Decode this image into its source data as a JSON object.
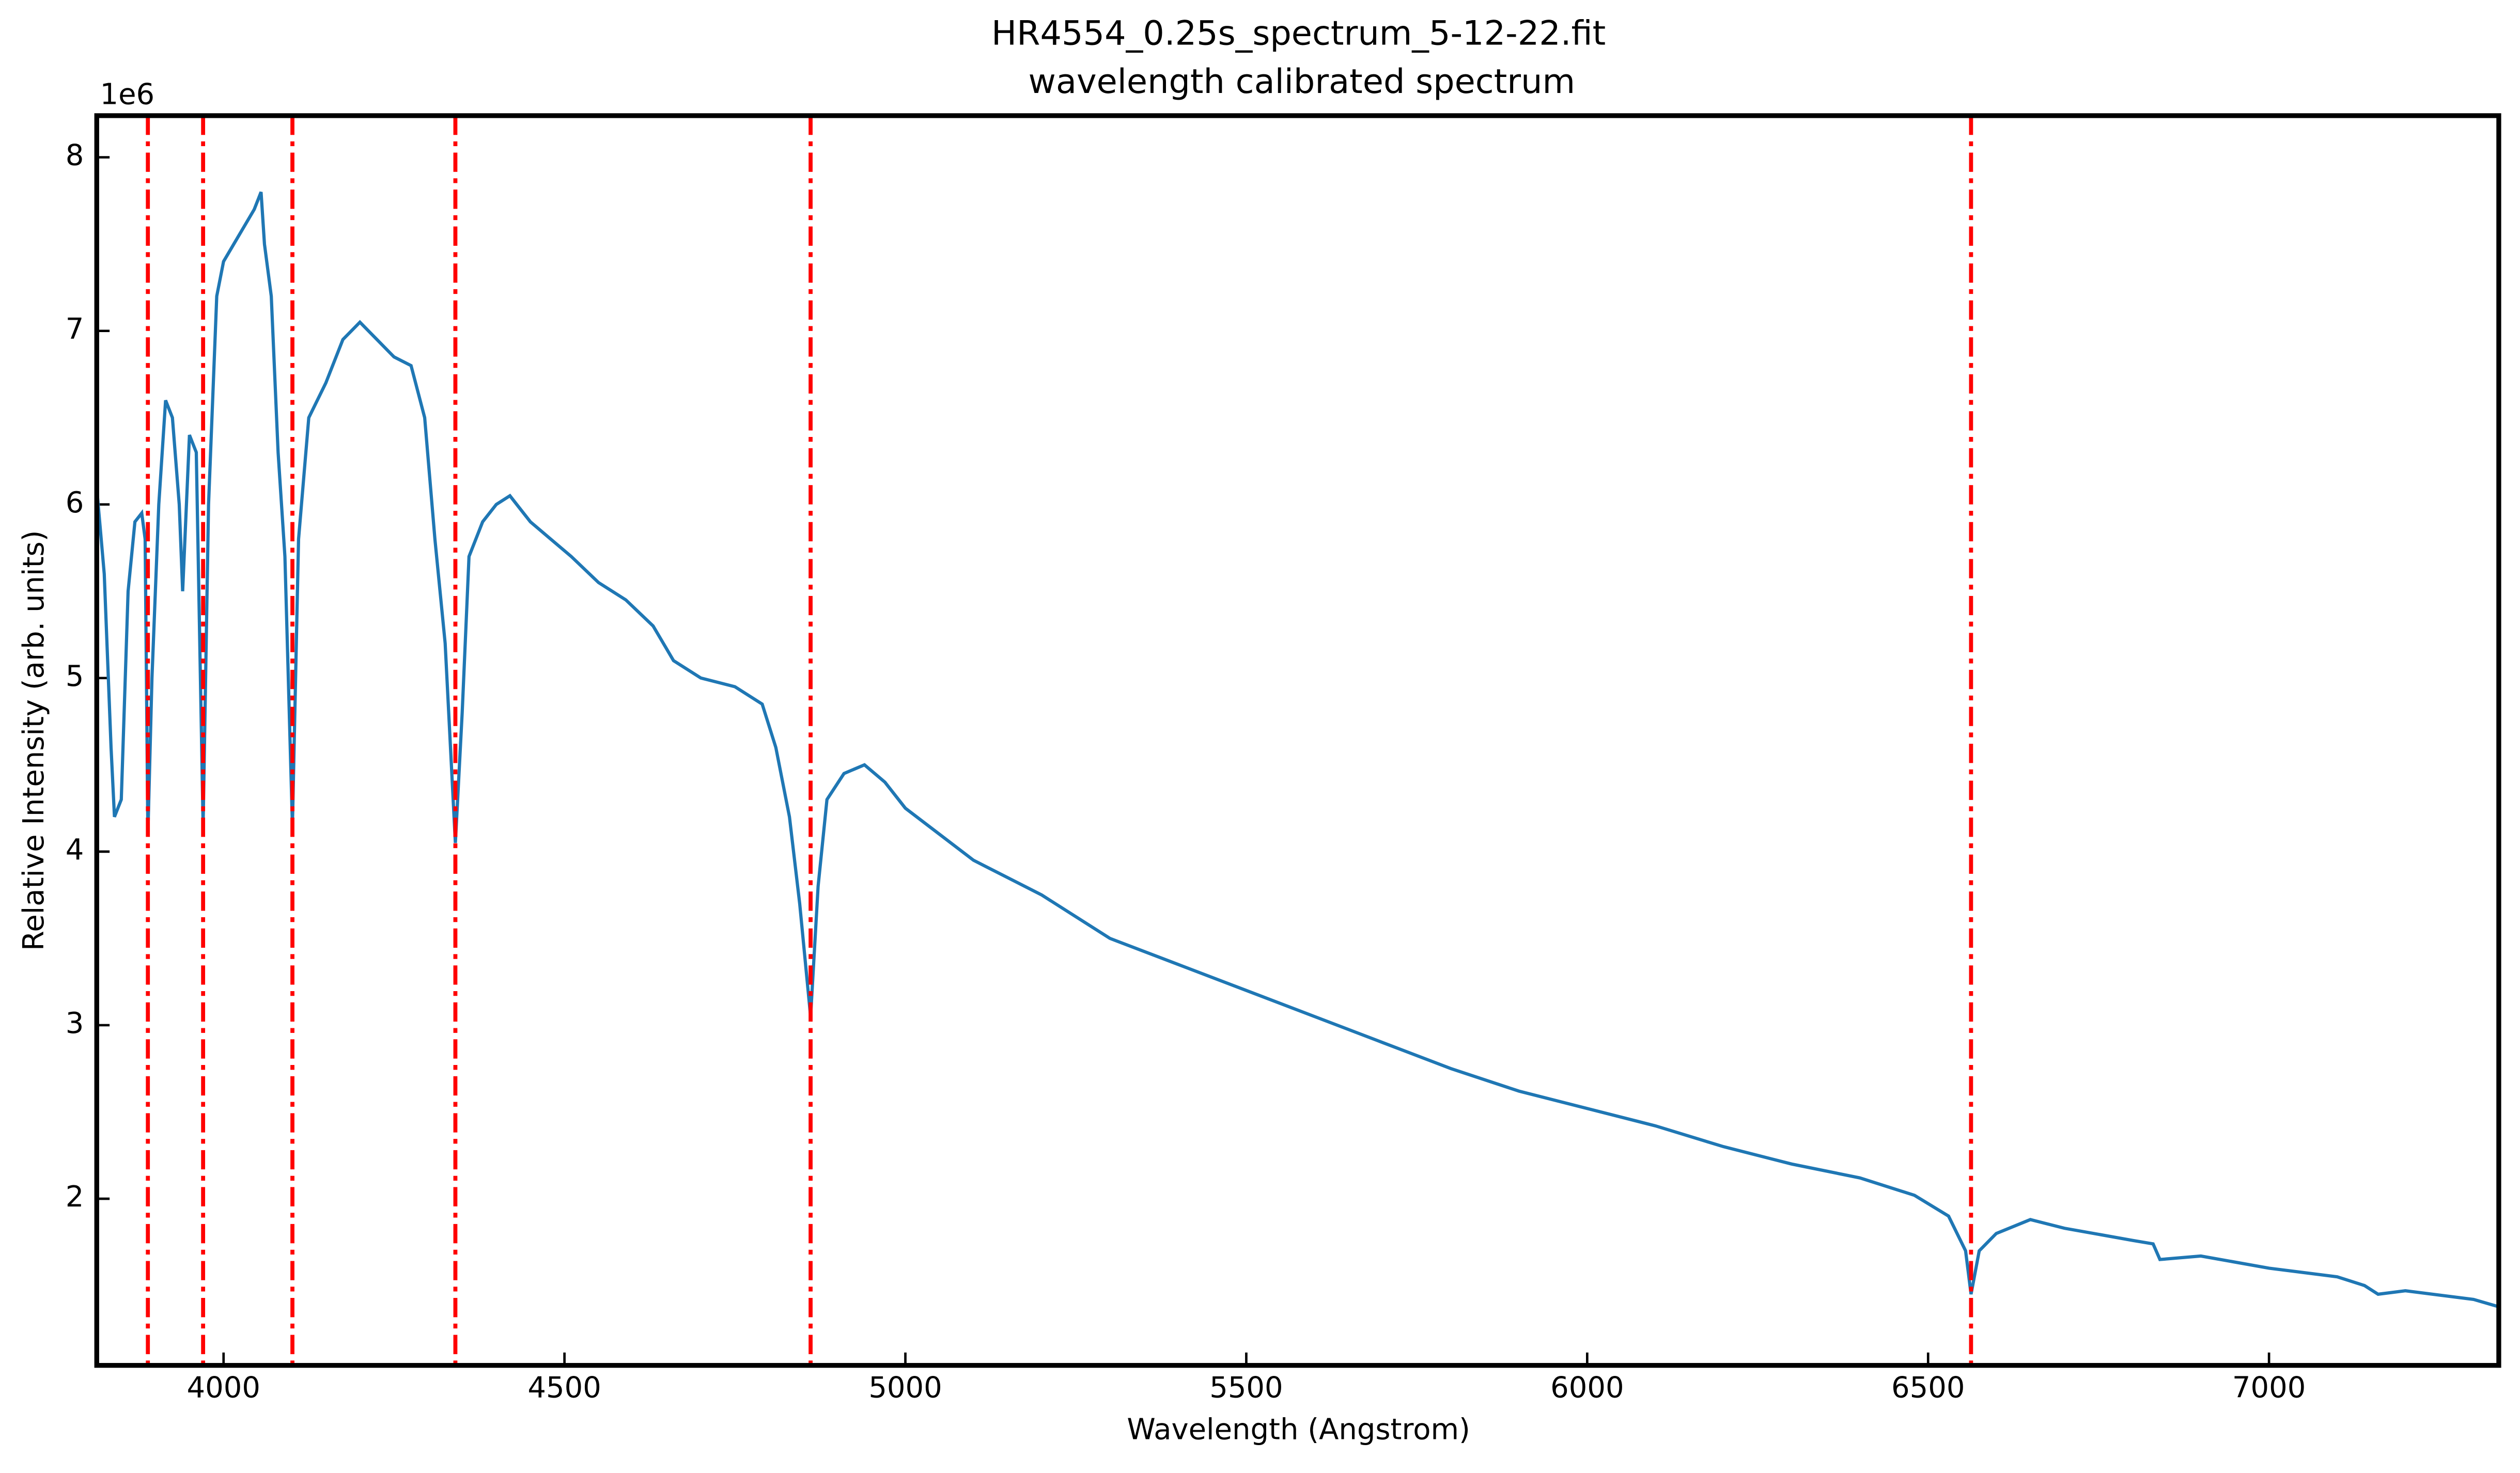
{
  "chart_data": {
    "type": "line",
    "title": "HR4554_0.25s_spectrum_5-12-22.fit",
    "subtitle": "wavelength calibrated spectrum",
    "x_label": "Wavelength (Angstrom)",
    "y_label": "Relative Intensity (arb. units)",
    "y_offset_label": "1e6",
    "color": "#1f77b4",
    "x": [
      3815,
      3825,
      3835,
      3840,
      3850,
      3860,
      3870,
      3880,
      3885,
      3889,
      3895,
      3905,
      3915,
      3925,
      3935,
      3940,
      3950,
      3960,
      3970,
      3978,
      3990,
      4000,
      4015,
      4030,
      4045,
      4055,
      4060,
      4070,
      4080,
      4090,
      4101,
      4110,
      4125,
      4150,
      4175,
      4200,
      4225,
      4250,
      4275,
      4295,
      4310,
      4325,
      4340,
      4350,
      4360,
      4380,
      4400,
      4420,
      4450,
      4480,
      4510,
      4550,
      4590,
      4630,
      4660,
      4700,
      4750,
      4790,
      4810,
      4830,
      4845,
      4861,
      4872,
      4885,
      4910,
      4940,
      4970,
      5000,
      5050,
      5100,
      5150,
      5200,
      5300,
      5400,
      5500,
      5600,
      5700,
      5800,
      5900,
      6000,
      6100,
      6200,
      6300,
      6400,
      6480,
      6530,
      6555,
      6563,
      6575,
      6600,
      6650,
      6700,
      6800,
      6830,
      6840,
      6900,
      7000,
      7100,
      7140,
      7160,
      7200,
      7300,
      7335
    ],
    "values": [
      6.05,
      5.6,
      4.6,
      4.2,
      4.3,
      5.5,
      5.9,
      5.95,
      5.8,
      4.1,
      5.0,
      6.0,
      6.6,
      6.5,
      6.0,
      5.5,
      6.4,
      6.3,
      4.15,
      6.0,
      7.2,
      7.4,
      7.5,
      7.6,
      7.7,
      7.8,
      7.5,
      7.2,
      6.3,
      5.7,
      4.15,
      5.8,
      6.5,
      6.7,
      6.95,
      7.05,
      6.95,
      6.85,
      6.8,
      6.5,
      5.8,
      5.2,
      4.05,
      4.8,
      5.7,
      5.9,
      6.0,
      6.05,
      5.9,
      5.8,
      5.7,
      5.55,
      5.45,
      5.3,
      5.1,
      5.0,
      4.95,
      4.85,
      4.6,
      4.2,
      3.7,
      3.05,
      3.8,
      4.3,
      4.45,
      4.5,
      4.4,
      4.25,
      4.1,
      3.95,
      3.85,
      3.75,
      3.5,
      3.35,
      3.2,
      3.05,
      2.9,
      2.75,
      2.62,
      2.52,
      2.42,
      2.3,
      2.2,
      2.12,
      2.02,
      1.9,
      1.7,
      1.45,
      1.7,
      1.8,
      1.88,
      1.83,
      1.76,
      1.74,
      1.65,
      1.67,
      1.6,
      1.55,
      1.5,
      1.45,
      1.47,
      1.42,
      1.38
    ],
    "vlines": {
      "x": [
        3889,
        3970,
        4101,
        4340,
        4861,
        6563
      ],
      "color": "#ff0000"
    },
    "xlim": [
      3814,
      7337
    ],
    "xticks": [
      4000,
      4500,
      5000,
      5500,
      6000,
      6500,
      7000
    ],
    "ylim": [
      1.04,
      8.24
    ],
    "yticks": [
      2,
      3,
      4,
      5,
      6,
      7,
      8
    ]
  }
}
